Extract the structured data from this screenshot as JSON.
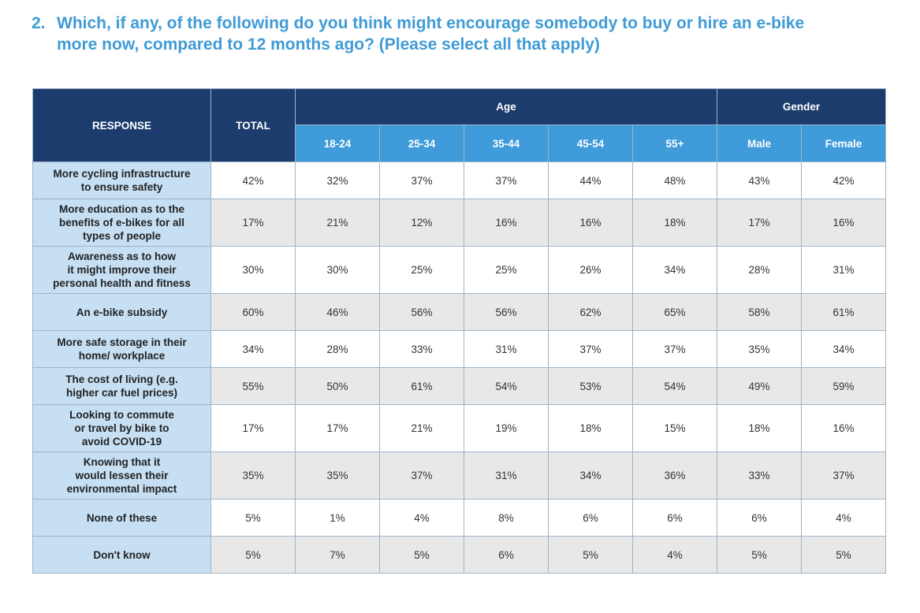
{
  "question": {
    "number": "2.",
    "line1": "Which, if any, of the following do you think might encourage somebody to buy or hire an e-bike",
    "line2": "more now, compared to 12 months ago? (Please select all that apply)"
  },
  "table": {
    "header": {
      "response": "RESPONSE",
      "total": "TOTAL",
      "age_group": "Age",
      "gender_group": "Gender",
      "age_columns": [
        "18-24",
        "25-34",
        "35-44",
        "45-54",
        "55+"
      ],
      "gender_columns": [
        "Male",
        "Female"
      ]
    },
    "rows": [
      {
        "response": "More cycling infrastructure\nto ensure safety",
        "values": [
          "42%",
          "32%",
          "37%",
          "37%",
          "44%",
          "48%",
          "43%",
          "42%"
        ]
      },
      {
        "response": "More education as to the\nbenefits of e-bikes for all\ntypes of people",
        "values": [
          "17%",
          "21%",
          "12%",
          "16%",
          "16%",
          "18%",
          "17%",
          "16%"
        ]
      },
      {
        "response": "Awareness as to how\nit might improve their\npersonal health and fitness",
        "values": [
          "30%",
          "30%",
          "25%",
          "25%",
          "26%",
          "34%",
          "28%",
          "31%"
        ]
      },
      {
        "response": "An e-bike subsidy",
        "values": [
          "60%",
          "46%",
          "56%",
          "56%",
          "62%",
          "65%",
          "58%",
          "61%"
        ]
      },
      {
        "response": "More safe storage in their\nhome/ workplace",
        "values": [
          "34%",
          "28%",
          "33%",
          "31%",
          "37%",
          "37%",
          "35%",
          "34%"
        ]
      },
      {
        "response": "The cost of living (e.g.\nhigher car fuel prices)",
        "values": [
          "55%",
          "50%",
          "61%",
          "54%",
          "53%",
          "54%",
          "49%",
          "59%"
        ]
      },
      {
        "response": "Looking to commute\nor travel by bike to\navoid COVID-19",
        "values": [
          "17%",
          "17%",
          "21%",
          "19%",
          "18%",
          "15%",
          "18%",
          "16%"
        ]
      },
      {
        "response": "Knowing that it\nwould lessen their\nenvironmental impact",
        "values": [
          "35%",
          "35%",
          "37%",
          "31%",
          "34%",
          "36%",
          "33%",
          "37%"
        ]
      },
      {
        "response": "None of these",
        "values": [
          "5%",
          "1%",
          "4%",
          "8%",
          "6%",
          "6%",
          "6%",
          "4%"
        ]
      },
      {
        "response": "Don't know",
        "values": [
          "5%",
          "7%",
          "5%",
          "6%",
          "5%",
          "4%",
          "5%",
          "5%"
        ]
      }
    ]
  },
  "colors": {
    "title": "#3f9bd6",
    "header_dark": "#1c3c6e",
    "header_light": "#3f9bd9",
    "response_cell": "#c6dff3",
    "row_alt": "#e8e8e8",
    "border": "#9fb4c7"
  }
}
